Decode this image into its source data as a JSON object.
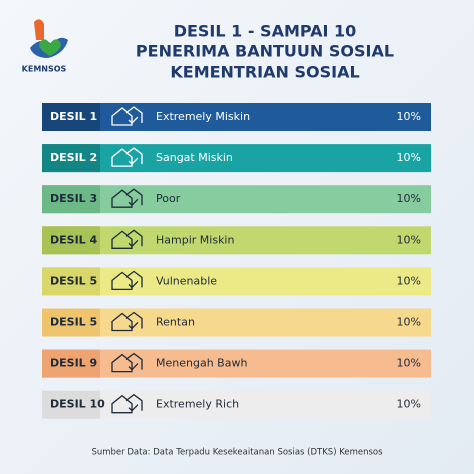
{
  "logo": {
    "label": "KEMNSOS"
  },
  "header": {
    "title_lines": [
      "DESIL 1 - SAMPAI 10",
      "PENERIMA BANTUUN SOSIAL",
      "KEMENTRIAN SOSIAL"
    ]
  },
  "table": {
    "rows": [
      [
        "DESIL 1",
        "Extremely Miskin",
        "10%"
      ],
      [
        "DESIL 2",
        "Sangat Miskin",
        "10%"
      ],
      [
        "DESIL 3",
        "Poor",
        "10%"
      ],
      [
        "DESIL 4",
        "Hampir Miskin",
        "10%"
      ],
      [
        "DESIL 5",
        "Vulnenable",
        "10%"
      ],
      [
        "DESIL 5",
        "Rentan",
        "10%"
      ],
      [
        "DESIL 9",
        "Menengah Bawh",
        "10%"
      ],
      [
        "DESIL 10",
        "Extremely Rich",
        "10%"
      ]
    ]
  },
  "footer": {
    "source": "Sumber Data: Data Terpadu Kesekeaitanan Sosias (DTKS) Kemensos"
  }
}
